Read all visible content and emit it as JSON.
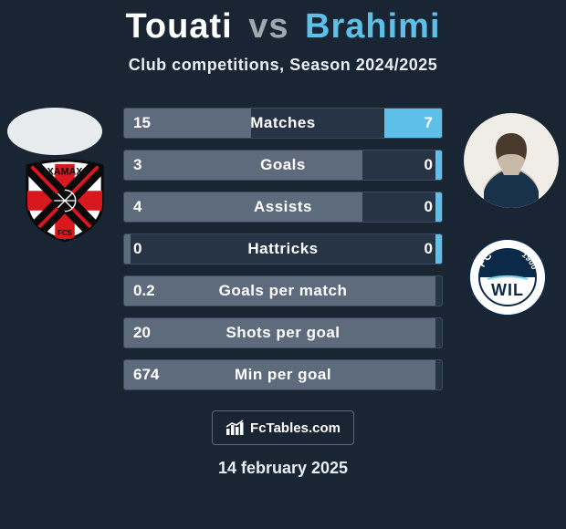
{
  "title": {
    "player1": "Touati",
    "connector": "vs",
    "player2": "Brahimi"
  },
  "subtitle": "Club competitions, Season 2024/2025",
  "colors": {
    "background": "#1a2533",
    "bar_bg": "#273445",
    "bar_border": "#3b4a5e",
    "p1_bar": "#5d6b7d",
    "p2_bar": "#5ec0e8",
    "p2_text": "#5ec0e8",
    "vs_text": "#a0a8b0",
    "text": "#ffffff"
  },
  "stats": [
    {
      "label": "Matches",
      "v1": "15",
      "v2": "7",
      "w1": 40,
      "w2": 18
    },
    {
      "label": "Goals",
      "v1": "3",
      "v2": "0",
      "w1": 75,
      "w2": 2
    },
    {
      "label": "Assists",
      "v1": "4",
      "v2": "0",
      "w1": 75,
      "w2": 2
    },
    {
      "label": "Hattricks",
      "v1": "0",
      "v2": "0",
      "w1": 2,
      "w2": 2
    },
    {
      "label": "Goals per match",
      "v1": "0.2",
      "v2": "",
      "w1": 98,
      "w2": 0
    },
    {
      "label": "Shots per goal",
      "v1": "20",
      "v2": "",
      "w1": 98,
      "w2": 0
    },
    {
      "label": "Min per goal",
      "v1": "674",
      "v2": "",
      "w1": 98,
      "w2": 0
    }
  ],
  "brand": "FcTables.com",
  "date": "14 february 2025",
  "club_left": {
    "name": "Xamax",
    "shield_bg": "#ffffff",
    "cross_color": "#d8171e",
    "x_color": "#0a0a0a",
    "ball_color": "#0a0a0a"
  },
  "club_right": {
    "name": "FC Wil",
    "ring_outer": "#ffffff",
    "ring_border": "#0b2a4a",
    "inner_top": "#0b2a4a",
    "inner_bottom": "#ffffff",
    "text_top": "FC",
    "text_year": "1900",
    "text_bottom": "WIL",
    "accent": "#7fd0ef"
  }
}
